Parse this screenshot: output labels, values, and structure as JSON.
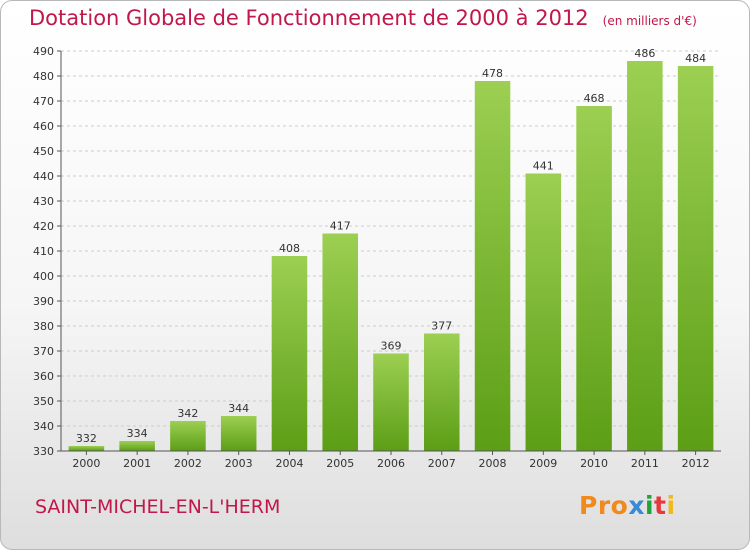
{
  "header": {
    "title": "Dotation Globale de Fonctionnement de 2000 à 2012",
    "unit": "(en milliers d'€)"
  },
  "footer": {
    "commune": "SAINT-MICHEL-EN-L'HERM",
    "logo": [
      "Pro",
      "x",
      "i",
      "t",
      "i"
    ]
  },
  "colors": {
    "title": "#c1174a",
    "bar_light": "#9ccf52",
    "bar_dark": "#5c9e16",
    "grid": "#cccccc"
  },
  "chart_data": {
    "type": "bar",
    "title": "Dotation Globale de Fonctionnement de 2000 à 2012",
    "categories": [
      "2000",
      "2001",
      "2002",
      "2003",
      "2004",
      "2005",
      "2006",
      "2007",
      "2008",
      "2009",
      "2010",
      "2011",
      "2012"
    ],
    "values": [
      332,
      334,
      342,
      344,
      408,
      417,
      369,
      377,
      478,
      441,
      468,
      486,
      484
    ],
    "ylim": [
      330,
      490
    ],
    "yticks": [
      330,
      340,
      350,
      360,
      370,
      380,
      390,
      400,
      410,
      420,
      430,
      440,
      450,
      460,
      470,
      480,
      490
    ],
    "grid": true,
    "xlabel": "",
    "ylabel": ""
  }
}
